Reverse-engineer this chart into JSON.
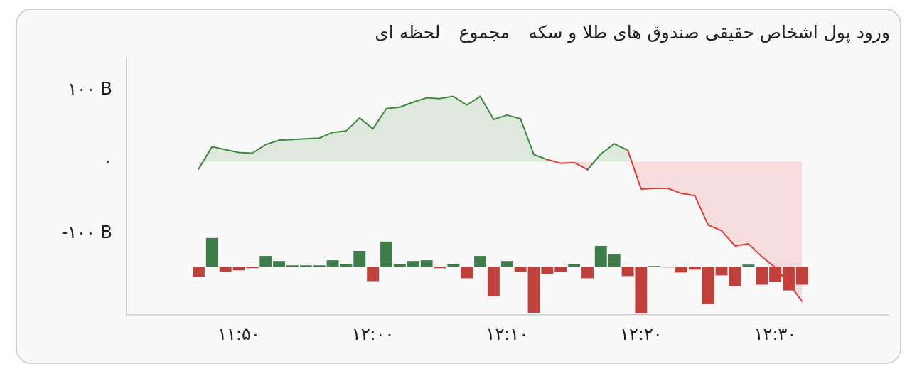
{
  "chart_data": {
    "type": "area",
    "title": "ورود پول اشخاص حقیقی صندوق های طلا و سکه",
    "annotations": [
      "مجموع",
      "لحظه ای"
    ],
    "x": [
      11.7833,
      11.8,
      11.8167,
      11.8333,
      11.85,
      11.8667,
      11.8833,
      11.9,
      11.9167,
      11.9333,
      11.95,
      11.9667,
      11.9833,
      12,
      12.0167,
      12.0333,
      12.05,
      12.0667,
      12.0833,
      12.1,
      12.1167,
      12.1333,
      12.15,
      12.1667,
      12.1833,
      12.2,
      12.2167,
      12.2333,
      12.25,
      12.2667,
      12.2833,
      12.3,
      12.3167,
      12.3333,
      12.35,
      12.3667,
      12.3833,
      12.4,
      12.4167,
      12.4333,
      12.45,
      12.4667,
      12.4833,
      12.5,
      12.5167,
      12.5333
    ],
    "series": [
      {
        "type": "bar",
        "base": [
          -146,
          -146,
          -146,
          -146,
          -146,
          -146,
          -146,
          -146,
          -146,
          -146,
          -146,
          -146,
          -146,
          -146,
          -146,
          -146,
          -146,
          -146,
          -146,
          -146,
          -146,
          -146,
          -146,
          -146,
          -146,
          -146,
          -146,
          -146,
          -146,
          -146,
          -146,
          -146,
          -146,
          -146,
          -146,
          -146,
          -146,
          -146,
          -146,
          -146,
          -146,
          -146,
          -146,
          -146,
          -146,
          -146
        ],
        "values": [
          -14,
          40,
          -7,
          -5,
          -2,
          15,
          8,
          2,
          2,
          2,
          9,
          4,
          22,
          -20,
          35,
          4,
          8,
          9,
          -2,
          4,
          -16,
          15,
          -41,
          8,
          -7,
          -64,
          -10,
          -7,
          4,
          -16,
          29,
          18,
          -13,
          -65,
          1,
          -1,
          -8,
          -4,
          -52,
          -12,
          -27,
          3,
          -25,
          -21,
          -33,
          -25
        ],
        "colors": [
          "#c0403b",
          "#3f7d4a",
          "#c0403b",
          "#c0403b",
          "#c0403b",
          "#3f7d4a",
          "#3f7d4a",
          "#3f7d4a",
          "#3f7d4a",
          "#3f7d4a",
          "#3f7d4a",
          "#3f7d4a",
          "#3f7d4a",
          "#c0403b",
          "#3f7d4a",
          "#3f7d4a",
          "#3f7d4a",
          "#3f7d4a",
          "#c0403b",
          "#3f7d4a",
          "#c0403b",
          "#3f7d4a",
          "#c0403b",
          "#3f7d4a",
          "#c0403b",
          "#c0403b",
          "#c0403b",
          "#c0403b",
          "#3f7d4a",
          "#c0403b",
          "#3f7d4a",
          "#3f7d4a",
          "#c0403b",
          "#c0403b",
          "#3f7d4a",
          "#c0403b",
          "#c0403b",
          "#c0403b",
          "#c0403b",
          "#c0403b",
          "#c0403b",
          "#3f7d4a",
          "#c0403b",
          "#c0403b",
          "#c0403b",
          "#c0403b"
        ]
      },
      {
        "values": [
          -10,
          21,
          17,
          13,
          12,
          24,
          30,
          31,
          32,
          33,
          41,
          43,
          61,
          46,
          74,
          76,
          83,
          89,
          88,
          91,
          79,
          91,
          59,
          65,
          60,
          10,
          3,
          -2,
          -1,
          -11,
          11,
          25,
          16,
          -38,
          -37,
          -37,
          -44,
          -47,
          -88,
          -96,
          -117,
          -114,
          -132,
          -147,
          -169,
          -194
        ],
        "colors": [
          "#e53935",
          "#3e8a3c",
          "#3e8a3c",
          "#3e8a3c",
          "#3e8a3c",
          "#3e8a3c",
          "#3e8a3c",
          "#3e8a3c",
          "#3e8a3c",
          "#3e8a3c",
          "#3e8a3c",
          "#3e8a3c",
          "#3e8a3c",
          "#3e8a3c",
          "#3e8a3c",
          "#3e8a3c",
          "#3e8a3c",
          "#3e8a3c",
          "#3e8a3c",
          "#3e8a3c",
          "#3e8a3c",
          "#3e8a3c",
          "#3e8a3c",
          "#3e8a3c",
          "#3e8a3c",
          "#3e8a3c",
          "#3e8a3c",
          "#e53935",
          "#e53935",
          "#e53935",
          "#3e8a3c",
          "#3e8a3c",
          "#3e8a3c",
          "#e53935",
          "#e53935",
          "#e53935",
          "#e53935",
          "#e53935",
          "#e53935",
          "#e53935",
          "#e53935",
          "#e53935",
          "#e53935",
          "#e53935",
          "#e53935",
          "#e53935"
        ]
      }
    ],
    "xlim": [
      11.6937,
      12.6409
    ],
    "xticks": [
      {
        "value": 11.8333,
        "label": "۱۱:۵۰"
      },
      {
        "value": 12,
        "label": "۱۲:۰۰"
      },
      {
        "value": 12.1667,
        "label": "۱۲:۱۰"
      },
      {
        "value": 12.3333,
        "label": "۱۲:۲۰"
      },
      {
        "value": 12.5,
        "label": "۱۲:۳۰"
      }
    ],
    "ylim": [
      -213,
      145
    ],
    "yticks": [
      {
        "value": 100,
        "label": "۱۰۰ B"
      },
      {
        "value": 0,
        "label": "۰"
      },
      {
        "value": -100,
        "label": "-۱۰۰ B"
      }
    ]
  }
}
